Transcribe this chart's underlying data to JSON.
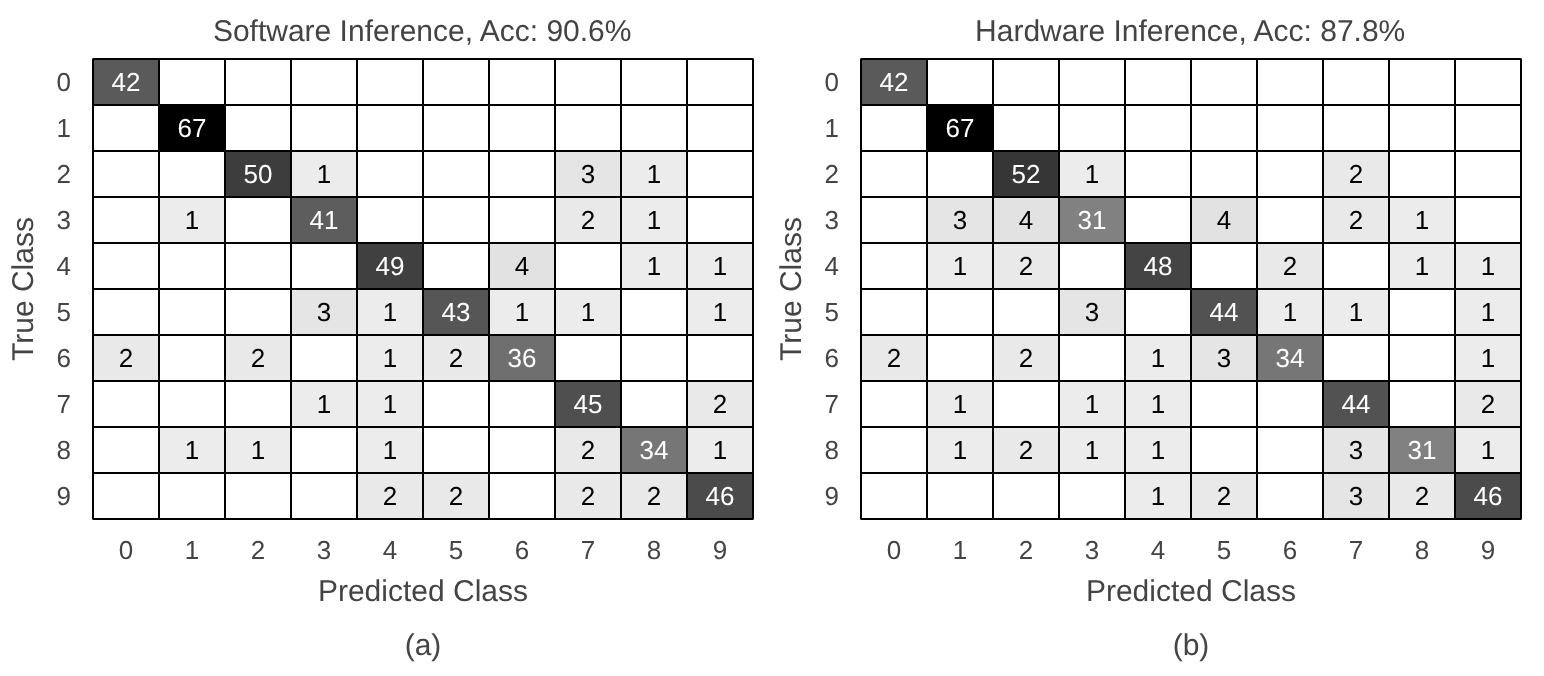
{
  "chart_data": [
    {
      "type": "heatmap",
      "title": "Software Inference, Acc: 90.6%",
      "xlabel": "Predicted Class",
      "ylabel": "True Class",
      "annotations": [
        "(a)"
      ],
      "data_labels": true,
      "grid": true,
      "categories": [
        "0",
        "1",
        "2",
        "3",
        "4",
        "5",
        "6",
        "7",
        "8",
        "9"
      ],
      "y_categories": [
        "0",
        "1",
        "2",
        "3",
        "4",
        "5",
        "6",
        "7",
        "8",
        "9"
      ],
      "cells": [
        [
          42,
          null,
          null,
          null,
          null,
          null,
          null,
          null,
          null,
          null
        ],
        [
          null,
          67,
          null,
          null,
          null,
          null,
          null,
          null,
          null,
          null
        ],
        [
          null,
          null,
          50,
          1,
          null,
          null,
          null,
          3,
          1,
          null
        ],
        [
          null,
          1,
          null,
          41,
          null,
          null,
          null,
          2,
          1,
          null
        ],
        [
          null,
          null,
          null,
          null,
          49,
          null,
          4,
          null,
          1,
          1
        ],
        [
          null,
          null,
          null,
          3,
          1,
          43,
          1,
          1,
          null,
          1
        ],
        [
          2,
          null,
          2,
          null,
          1,
          2,
          36,
          null,
          null,
          null
        ],
        [
          null,
          null,
          null,
          1,
          1,
          null,
          null,
          45,
          null,
          2
        ],
        [
          null,
          1,
          1,
          null,
          1,
          null,
          null,
          2,
          34,
          1
        ],
        [
          null,
          null,
          null,
          null,
          2,
          2,
          null,
          2,
          2,
          46
        ]
      ]
    },
    {
      "type": "heatmap",
      "title": "Hardware Inference, Acc: 87.8%",
      "xlabel": "Predicted Class",
      "ylabel": "True Class",
      "annotations": [
        "(b)"
      ],
      "data_labels": true,
      "grid": true,
      "categories": [
        "0",
        "1",
        "2",
        "3",
        "4",
        "5",
        "6",
        "7",
        "8",
        "9"
      ],
      "y_categories": [
        "0",
        "1",
        "2",
        "3",
        "4",
        "5",
        "6",
        "7",
        "8",
        "9"
      ],
      "cells": [
        [
          42,
          null,
          null,
          null,
          null,
          null,
          null,
          null,
          null,
          null
        ],
        [
          null,
          67,
          null,
          null,
          null,
          null,
          null,
          null,
          null,
          null
        ],
        [
          null,
          null,
          52,
          1,
          null,
          null,
          null,
          2,
          null,
          null
        ],
        [
          null,
          3,
          4,
          31,
          null,
          4,
          null,
          2,
          1,
          null
        ],
        [
          null,
          1,
          2,
          null,
          48,
          null,
          2,
          null,
          1,
          1
        ],
        [
          null,
          null,
          null,
          3,
          null,
          44,
          1,
          1,
          null,
          1
        ],
        [
          2,
          null,
          2,
          null,
          1,
          3,
          34,
          null,
          null,
          1
        ],
        [
          null,
          1,
          null,
          1,
          1,
          null,
          null,
          44,
          null,
          2
        ],
        [
          null,
          1,
          2,
          1,
          1,
          null,
          null,
          3,
          31,
          1
        ],
        [
          null,
          null,
          null,
          null,
          1,
          2,
          null,
          3,
          2,
          46
        ]
      ]
    }
  ]
}
